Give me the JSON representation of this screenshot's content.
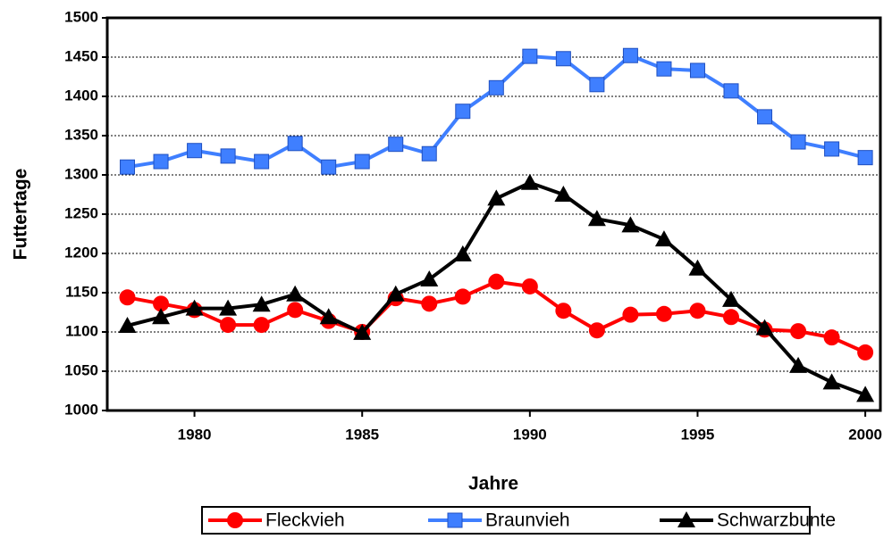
{
  "chart_data": {
    "type": "line",
    "x_label": "Jahre",
    "y_label": "Futtertage",
    "x": [
      1978,
      1979,
      1980,
      1981,
      1982,
      1983,
      1984,
      1985,
      1986,
      1987,
      1988,
      1989,
      1990,
      1991,
      1992,
      1993,
      1994,
      1995,
      1996,
      1997,
      1998,
      1999,
      2000
    ],
    "series": [
      {
        "name": "Fleckvieh",
        "color": "#ff0000",
        "marker": "circle",
        "values": [
          1144,
          1136,
          1128,
          1109,
          1109,
          1128,
          1114,
          1100,
          1143,
          1136,
          1145,
          1164,
          1158,
          1127,
          1102,
          1122,
          1123,
          1127,
          1119,
          1103,
          1101,
          1093,
          1074
        ]
      },
      {
        "name": "Braunvieh",
        "color": "#3f7fff",
        "marker": "square",
        "values": [
          1310,
          1317,
          1331,
          1324,
          1317,
          1340,
          1310,
          1317,
          1339,
          1327,
          1381,
          1411,
          1451,
          1448,
          1415,
          1452,
          1435,
          1433,
          1407,
          1374,
          1342,
          1333,
          1322
        ]
      },
      {
        "name": "Schwarzbunte",
        "color": "#000000",
        "marker": "triangle",
        "values": [
          1108,
          1119,
          1130,
          1130,
          1135,
          1148,
          1119,
          1099,
          1148,
          1167,
          1199,
          1270,
          1290,
          1275,
          1244,
          1236,
          1218,
          1181,
          1141,
          1105,
          1057,
          1036,
          1020
        ]
      }
    ],
    "xlim": [
      1977.4,
      2000.45
    ],
    "xticks": [
      1980,
      1985,
      1990,
      1995,
      2000
    ],
    "ylim": [
      1000,
      1500
    ],
    "yticks": [
      1000,
      1050,
      1100,
      1150,
      1200,
      1250,
      1300,
      1350,
      1400,
      1450,
      1500
    ],
    "grid": true,
    "legend": "bottom"
  }
}
